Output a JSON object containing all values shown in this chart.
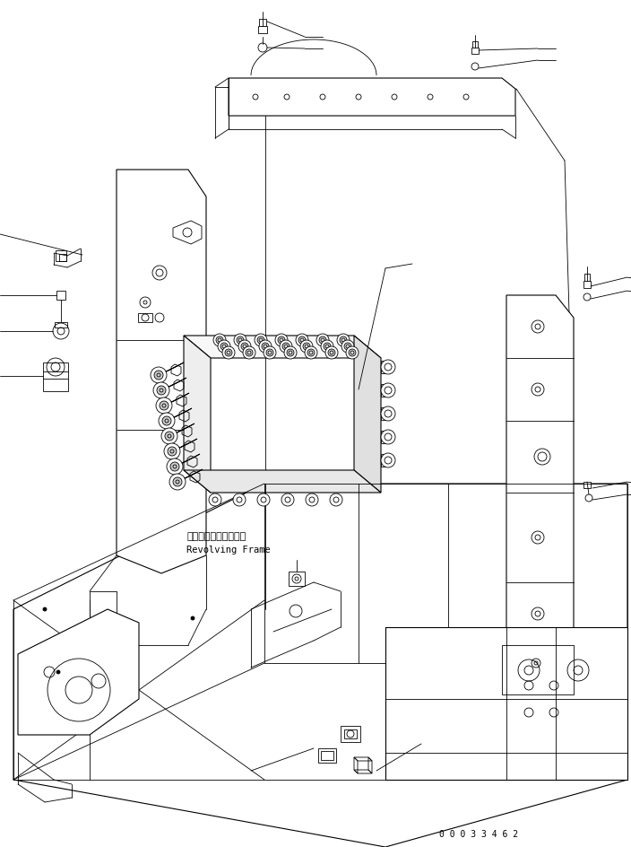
{
  "background_color": "#ffffff",
  "line_color": "#000000",
  "fig_width": 7.04,
  "fig_height": 9.45,
  "dpi": 100,
  "label_jp": "レボルビングフレーム",
  "label_en": "Revolving Frame",
  "part_number": "0 0 0 3 3 4 6 2"
}
